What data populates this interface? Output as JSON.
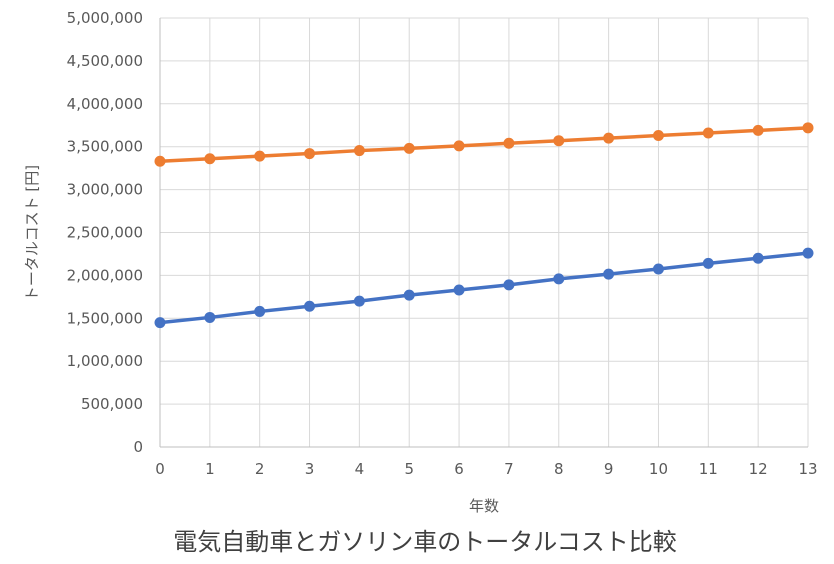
{
  "chart_data": {
    "type": "line",
    "title": "電気自動車とガソリン車のトータルコスト比較",
    "xlabel": "年数",
    "ylabel": "トータルコスト [円]",
    "x": [
      0,
      1,
      2,
      3,
      4,
      5,
      6,
      7,
      8,
      9,
      10,
      11,
      12,
      13
    ],
    "xlim": [
      0,
      13
    ],
    "ylim": [
      0,
      5000000
    ],
    "y_ticks": [
      0,
      500000,
      1000000,
      1500000,
      2000000,
      2500000,
      3000000,
      3500000,
      4000000,
      4500000,
      5000000
    ],
    "y_tick_labels": [
      "0",
      "500,000",
      "1,000,000",
      "1,500,000",
      "2,000,000",
      "2,500,000",
      "3,000,000",
      "3,500,000",
      "4,000,000",
      "4,500,000",
      "5,000,000"
    ],
    "x_tick_labels": [
      "0",
      "1",
      "2",
      "3",
      "4",
      "5",
      "6",
      "7",
      "8",
      "9",
      "10",
      "11",
      "12",
      "13"
    ],
    "grid": true,
    "legend": "none",
    "series": [
      {
        "color": "#ED7D31",
        "values": [
          3330000,
          3360000,
          3390000,
          3420000,
          3455000,
          3480000,
          3510000,
          3540000,
          3570000,
          3600000,
          3630000,
          3660000,
          3690000,
          3720000
        ]
      },
      {
        "color": "#4472C4",
        "values": [
          1450000,
          1510000,
          1580000,
          1640000,
          1700000,
          1770000,
          1830000,
          1890000,
          1960000,
          2015000,
          2075000,
          2140000,
          2200000,
          2260000
        ]
      }
    ]
  }
}
